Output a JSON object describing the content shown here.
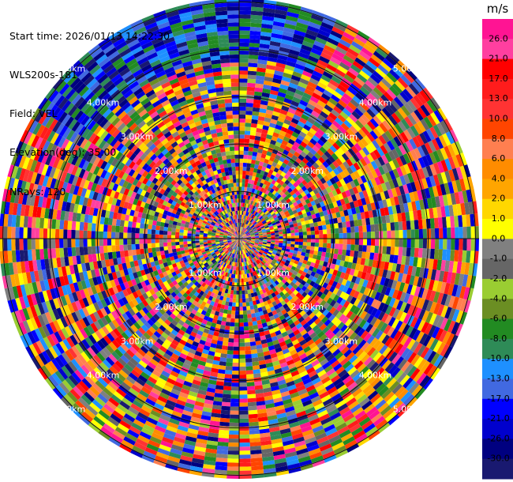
{
  "header": {
    "start_time": "Start time: 2026/01/13 14:22:30",
    "instrument": "WLS200s-181",
    "field": "Field: VEL",
    "elevation": "Elevation(deg): 35.00",
    "nrays": "NRays: 120"
  },
  "chart_data": {
    "type": "polar-ppi",
    "field": "VEL",
    "unit": "m/s",
    "range_rings_km": [
      1,
      2,
      3,
      4,
      5
    ],
    "range_labels": [
      "1.00km",
      "2.00km",
      "3.00km",
      "4.00km",
      "5.00km"
    ],
    "max_range_km": 5.0,
    "n_rays": 120,
    "n_gates": 60,
    "colorbar": {
      "label": "m/s",
      "ticks": [
        "26.0",
        "21.0",
        "17.0",
        "13.0",
        "10.0",
        "8.0",
        "6.0",
        "4.0",
        "2.0",
        "1.0",
        "0.0",
        "-1.0",
        "-2.0",
        "-4.0",
        "-6.0",
        "-8.0",
        "-10.0",
        "-13.0",
        "-17.0",
        "-21.0",
        "-26.0",
        "-30.0"
      ],
      "colors": [
        "#ff1493",
        "#ff3fa0",
        "#ff0000",
        "#ff1c1c",
        "#ff3333",
        "#ff4500",
        "#ff7f50",
        "#ff8c00",
        "#ffa500",
        "#ffd700",
        "#ffff00",
        "#808080",
        "#666666",
        "#9acd32",
        "#6b8e23",
        "#228b22",
        "#2e8b57",
        "#1e90ff",
        "#4169e1",
        "#0000ff",
        "#0000cd",
        "#000080",
        "#191970"
      ]
    }
  }
}
